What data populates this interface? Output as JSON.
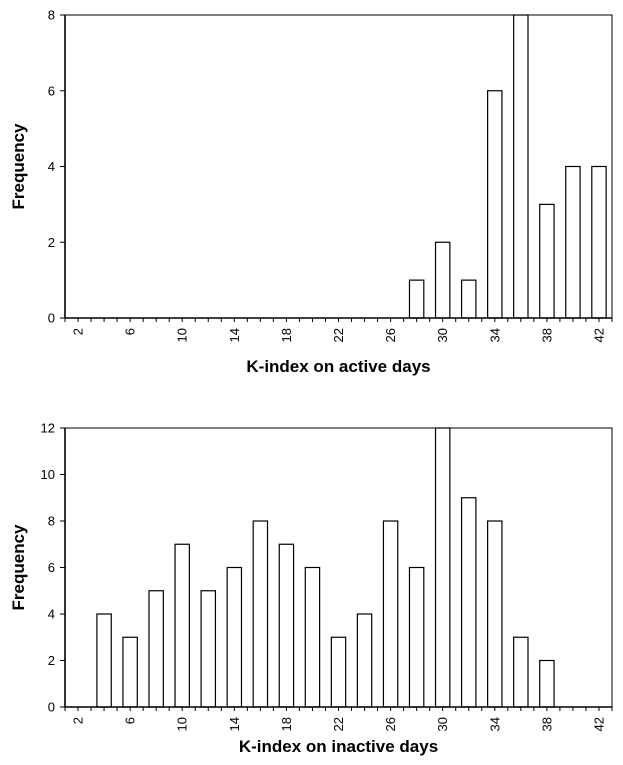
{
  "chart_data": [
    {
      "type": "bar",
      "xlabel": "K-index on active days",
      "ylabel": "Frequency",
      "ylim": [
        0,
        8
      ],
      "yticks": [
        0,
        2,
        4,
        6,
        8
      ],
      "xlim": [
        1,
        43
      ],
      "xticks": [
        2,
        6,
        10,
        14,
        18,
        22,
        26,
        30,
        34,
        38,
        42
      ],
      "x": [
        28,
        30,
        32,
        34,
        36,
        38,
        40,
        42
      ],
      "values": [
        1,
        2,
        1,
        6,
        8,
        3,
        4,
        4
      ],
      "grid": false
    },
    {
      "type": "bar",
      "xlabel": "K-index on inactive days",
      "ylabel": "Frequency",
      "ylim": [
        0,
        12
      ],
      "yticks": [
        0,
        2,
        4,
        6,
        8,
        10,
        12
      ],
      "xlim": [
        1,
        43
      ],
      "xticks": [
        2,
        6,
        10,
        14,
        18,
        22,
        26,
        30,
        34,
        38,
        42
      ],
      "x": [
        4,
        6,
        8,
        10,
        12,
        14,
        16,
        18,
        20,
        22,
        24,
        26,
        28,
        30,
        32,
        34,
        36,
        38
      ],
      "values": [
        4,
        3,
        5,
        7,
        5,
        6,
        8,
        7,
        6,
        3,
        4,
        8,
        6,
        12,
        9,
        8,
        3,
        2
      ],
      "grid": false
    }
  ]
}
